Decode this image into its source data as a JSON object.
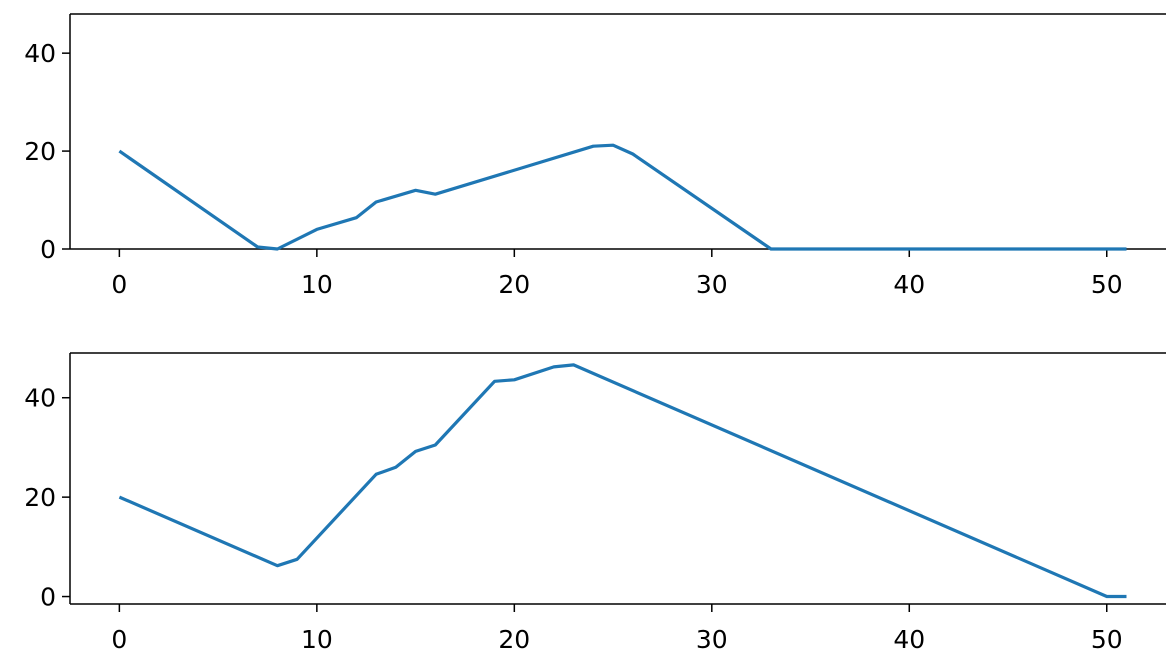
{
  "chart_data": [
    {
      "type": "line",
      "title": "",
      "xlabel": "",
      "ylabel": "",
      "xlim": [
        -2.5,
        53
      ],
      "ylim": [
        0,
        48
      ],
      "xticks": [
        0,
        10,
        20,
        30,
        40,
        50
      ],
      "yticks": [
        0,
        20,
        40
      ],
      "grid": false,
      "color": "#1f77b4",
      "series": [
        {
          "x": [
            0,
            7,
            8,
            10,
            12,
            13,
            15,
            16,
            24,
            25,
            26,
            33,
            34,
            40,
            45,
            51
          ],
          "y": [
            20,
            0.4,
            0,
            4,
            6.4,
            9.6,
            12,
            11.2,
            21,
            21.2,
            19.4,
            0,
            0,
            0,
            0,
            0
          ]
        }
      ]
    },
    {
      "type": "line",
      "title": "",
      "xlabel": "",
      "ylabel": "",
      "xlim": [
        -2.5,
        53
      ],
      "ylim": [
        -1.5,
        49
      ],
      "xticks": [
        0,
        10,
        20,
        30,
        40,
        50
      ],
      "yticks": [
        0,
        20,
        40
      ],
      "grid": false,
      "color": "#1f77b4",
      "series": [
        {
          "x": [
            0,
            8,
            9,
            13,
            14,
            15,
            16,
            19,
            20,
            22,
            23,
            50,
            51
          ],
          "y": [
            20,
            6.2,
            7.5,
            24.6,
            26,
            29.2,
            30.5,
            43.3,
            43.6,
            46.2,
            46.6,
            0,
            0
          ]
        }
      ]
    }
  ]
}
